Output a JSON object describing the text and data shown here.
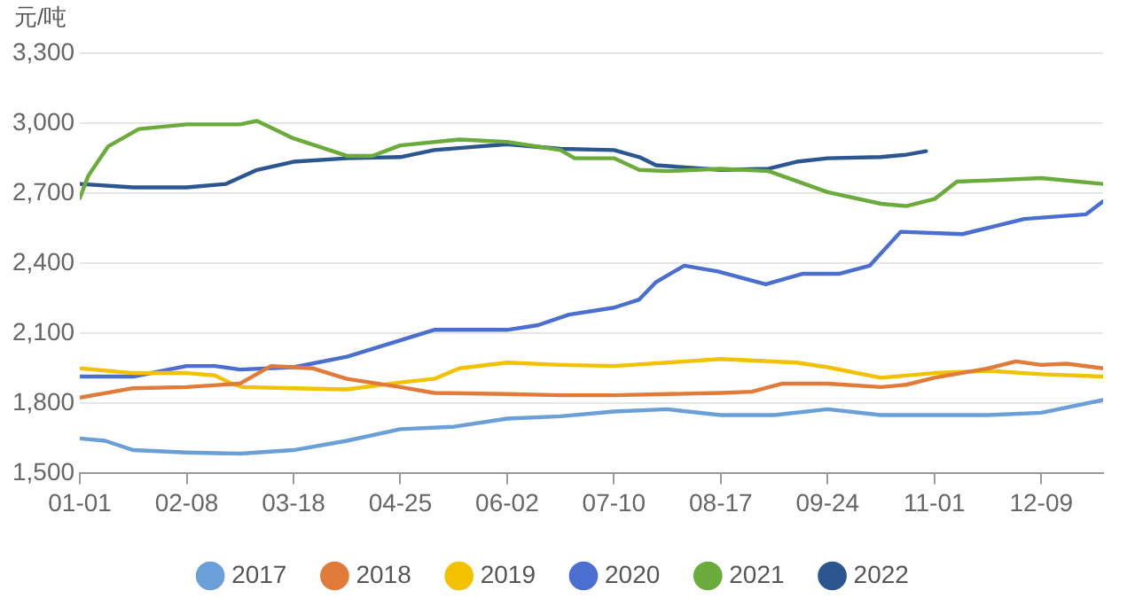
{
  "chart_data": {
    "type": "line",
    "ylabel": "元/吨",
    "xlim": [
      "--01-01",
      "--12-31"
    ],
    "xticks": [
      {
        "value": "--01-01",
        "label": "01-01"
      },
      {
        "value": "--02-08",
        "label": "02-08"
      },
      {
        "value": "--03-18",
        "label": "03-18"
      },
      {
        "value": "--04-25",
        "label": "04-25"
      },
      {
        "value": "--06-02",
        "label": "06-02"
      },
      {
        "value": "--07-10",
        "label": "07-10"
      },
      {
        "value": "--08-17",
        "label": "08-17"
      },
      {
        "value": "--09-24",
        "label": "09-24"
      },
      {
        "value": "--11-01",
        "label": "11-01"
      },
      {
        "value": "--12-09",
        "label": "12-09"
      }
    ],
    "ylim": [
      1500,
      3300
    ],
    "yticks": [
      {
        "value": 1500,
        "label": "1,500"
      },
      {
        "value": 1800,
        "label": "1,800"
      },
      {
        "value": 2100,
        "label": "2,100"
      },
      {
        "value": 2400,
        "label": "2,400"
      },
      {
        "value": 2700,
        "label": "2,700"
      },
      {
        "value": 3000,
        "label": "3,000"
      },
      {
        "value": 3300,
        "label": "3,300"
      }
    ],
    "grid": "y",
    "legend": "bottom",
    "marker": "none",
    "line_style": "solid",
    "series": [
      {
        "name": "2017",
        "color": "#6a9fd8",
        "x": [
          "--01-01",
          "--01-10",
          "--01-20",
          "--02-08",
          "--02-27",
          "--03-18",
          "--04-06",
          "--04-25",
          "--05-14",
          "--06-02",
          "--06-21",
          "--07-10",
          "--07-29",
          "--08-17",
          "--09-05",
          "--09-24",
          "--10-13",
          "--11-01",
          "--11-20",
          "--12-09",
          "--12-31"
        ],
        "values": [
          1650,
          1640,
          1600,
          1590,
          1585,
          1600,
          1640,
          1690,
          1700,
          1735,
          1745,
          1765,
          1775,
          1750,
          1750,
          1775,
          1750,
          1750,
          1750,
          1760,
          1815
        ]
      },
      {
        "name": "2018",
        "color": "#e07b39",
        "x": [
          "--01-01",
          "--01-20",
          "--02-08",
          "--02-27",
          "--03-10",
          "--03-18",
          "--03-25",
          "--04-06",
          "--04-25",
          "--05-07",
          "--06-02",
          "--06-21",
          "--07-10",
          "--07-29",
          "--08-17",
          "--08-28",
          "--09-08",
          "--09-24",
          "--10-13",
          "--10-22",
          "--11-01",
          "--11-20",
          "--11-30",
          "--12-09",
          "--12-18",
          "--12-31"
        ],
        "values": [
          1825,
          1865,
          1870,
          1885,
          1960,
          1955,
          1950,
          1905,
          1870,
          1845,
          1840,
          1835,
          1835,
          1840,
          1845,
          1850,
          1885,
          1885,
          1870,
          1880,
          1910,
          1950,
          1980,
          1965,
          1970,
          1950
        ]
      },
      {
        "name": "2019",
        "color": "#f2c200",
        "x": [
          "--01-01",
          "--01-20",
          "--02-08",
          "--02-18",
          "--02-24",
          "--02-28",
          "--03-18",
          "--04-06",
          "--04-25",
          "--05-07",
          "--05-16",
          "--06-02",
          "--06-21",
          "--07-10",
          "--08-17",
          "--09-13",
          "--09-24",
          "--10-13",
          "--11-01",
          "--11-20",
          "--12-09",
          "--12-31"
        ],
        "values": [
          1950,
          1930,
          1930,
          1920,
          1885,
          1870,
          1865,
          1860,
          1890,
          1905,
          1950,
          1975,
          1965,
          1960,
          1990,
          1975,
          1955,
          1910,
          1930,
          1940,
          1925,
          1915
        ]
      },
      {
        "name": "2020",
        "color": "#4a6fd0",
        "x": [
          "--01-01",
          "--01-20",
          "--02-08",
          "--02-18",
          "--02-27",
          "--03-18",
          "--04-06",
          "--04-25",
          "--05-07",
          "--06-02",
          "--06-13",
          "--06-24",
          "--07-10",
          "--07-19",
          "--07-25",
          "--08-04",
          "--08-16",
          "--09-02",
          "--09-15",
          "--09-28",
          "--10-09",
          "--10-20",
          "--11-11",
          "--12-03",
          "--12-25",
          "--12-31"
        ],
        "values": [
          1915,
          1915,
          1960,
          1960,
          1945,
          1955,
          2000,
          2070,
          2115,
          2115,
          2135,
          2180,
          2210,
          2245,
          2320,
          2390,
          2365,
          2310,
          2355,
          2355,
          2390,
          2535,
          2525,
          2590,
          2610,
          2665
        ]
      },
      {
        "name": "2021",
        "color": "#6aab3c",
        "x": [
          "--01-01",
          "--01-04",
          "--01-11",
          "--01-22",
          "--02-08",
          "--02-27",
          "--03-05",
          "--03-18",
          "--04-06",
          "--04-15",
          "--04-25",
          "--05-16",
          "--06-02",
          "--06-21",
          "--06-26",
          "--07-10",
          "--07-19",
          "--07-29",
          "--08-17",
          "--09-03",
          "--09-24",
          "--10-13",
          "--10-22",
          "--11-01",
          "--11-09",
          "--11-20",
          "--12-09",
          "--12-31"
        ],
        "values": [
          2680,
          2775,
          2900,
          2975,
          2995,
          2995,
          3010,
          2935,
          2860,
          2860,
          2905,
          2930,
          2920,
          2885,
          2850,
          2850,
          2800,
          2795,
          2805,
          2795,
          2705,
          2655,
          2645,
          2675,
          2750,
          2755,
          2765,
          2740
        ]
      },
      {
        "name": "2022",
        "color": "#2b5690",
        "x": [
          "--01-01",
          "--01-20",
          "--02-08",
          "--02-22",
          "--03-05",
          "--03-18",
          "--04-06",
          "--04-25",
          "--05-07",
          "--06-02",
          "--06-21",
          "--07-10",
          "--07-19",
          "--07-25",
          "--08-17",
          "--09-03",
          "--09-13",
          "--09-24",
          "--10-13",
          "--10-22",
          "--10-29"
        ],
        "values": [
          2740,
          2725,
          2725,
          2740,
          2800,
          2835,
          2850,
          2855,
          2885,
          2910,
          2890,
          2885,
          2855,
          2820,
          2800,
          2805,
          2835,
          2850,
          2855,
          2865,
          2880
        ]
      }
    ]
  }
}
